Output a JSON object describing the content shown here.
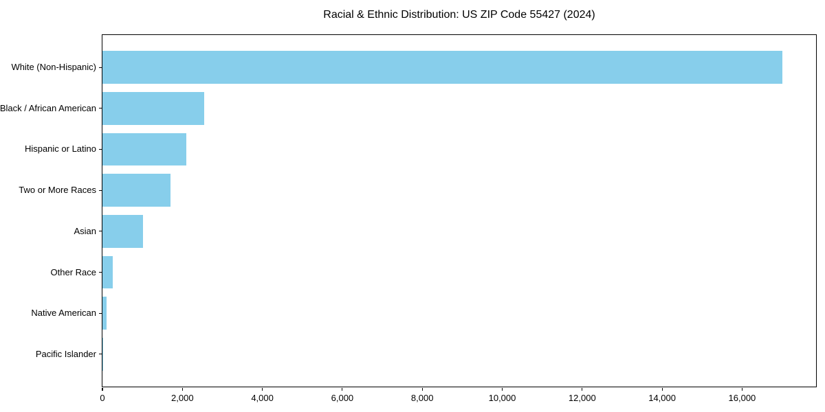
{
  "chart_data": {
    "type": "bar",
    "orientation": "horizontal",
    "title": "Racial & Ethnic Distribution: US ZIP Code 55427 (2024)",
    "xlabel": "",
    "ylabel": "",
    "categories": [
      "White (Non-Hispanic)",
      "Black / African American",
      "Hispanic or Latino",
      "Two or More Races",
      "Asian",
      "Other Race",
      "Native American",
      "Pacific Islander"
    ],
    "values": [
      17000,
      2550,
      2100,
      1700,
      1020,
      260,
      100,
      10
    ],
    "xlim": [
      0,
      17850
    ],
    "x_tick_values": [
      0,
      2000,
      4000,
      6000,
      8000,
      10000,
      12000,
      14000,
      16000
    ],
    "x_tick_labels": [
      "0",
      "2,000",
      "4,000",
      "6,000",
      "8,000",
      "10,000",
      "12,000",
      "14,000",
      "16,000"
    ],
    "bar_color": "#87CEEB",
    "grid": false,
    "legend": false
  }
}
